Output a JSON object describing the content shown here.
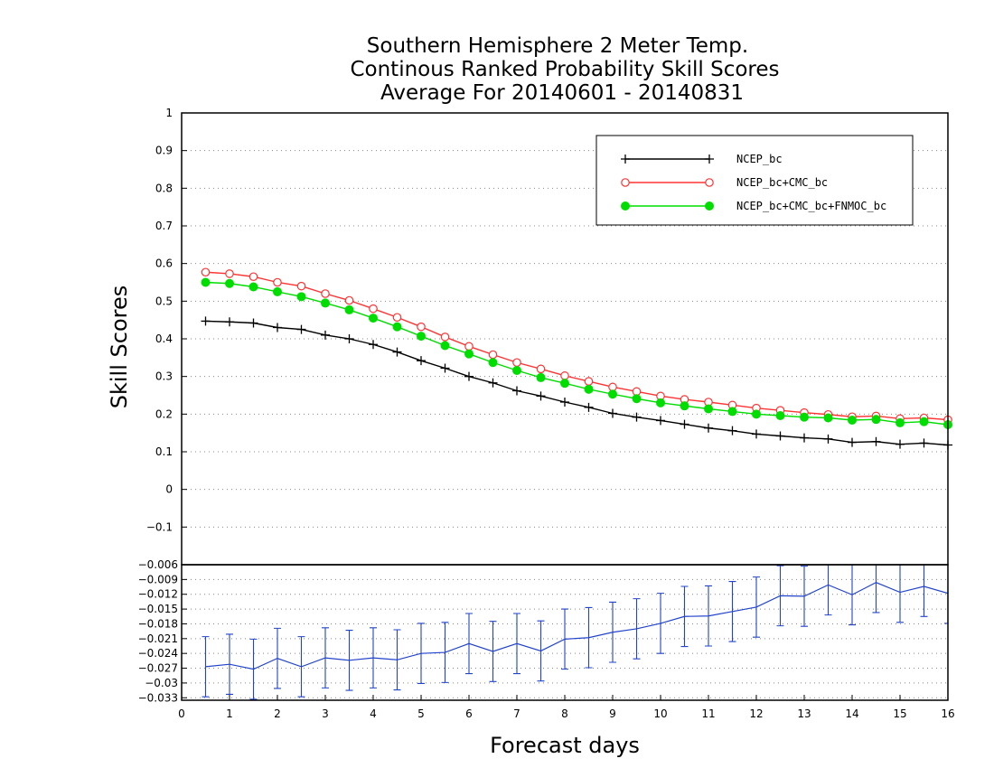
{
  "chart_data": [
    {
      "type": "line",
      "title": [
        "Southern Hemisphere 2 Meter Temp.",
        "Continous Ranked Probability Skill Scores",
        "Average For 20140601 - 20140831"
      ],
      "xlabel": "Forecast days",
      "ylabel": "Skill Scores",
      "xlim": [
        0,
        16
      ],
      "ylim": [
        -0.2,
        1
      ],
      "x_ticks": [
        "0",
        "1",
        "2",
        "3",
        "4",
        "5",
        "6",
        "7",
        "8",
        "9",
        "10",
        "11",
        "12",
        "13",
        "14",
        "15",
        "16"
      ],
      "y_ticks": [
        "−0.1",
        "0",
        "0.1",
        "0.2",
        "0.3",
        "0.4",
        "0.5",
        "0.6",
        "0.7",
        "0.8",
        "0.9",
        "1"
      ],
      "grid": true,
      "legend_position": "top-right",
      "x": [
        0.5,
        1,
        1.5,
        2,
        2.5,
        3,
        3.5,
        4,
        4.5,
        5,
        5.5,
        6,
        6.5,
        7,
        7.5,
        8,
        8.5,
        9,
        9.5,
        10,
        10.5,
        11,
        11.5,
        12,
        12.5,
        13,
        13.5,
        14,
        14.5,
        15,
        15.5,
        16
      ],
      "series": [
        {
          "name": "NCEP_bc",
          "color": "#000000",
          "marker": "plus",
          "values": [
            0.447,
            0.445,
            0.442,
            0.43,
            0.425,
            0.41,
            0.4,
            0.385,
            0.365,
            0.342,
            0.322,
            0.3,
            0.283,
            0.262,
            0.248,
            0.232,
            0.218,
            0.202,
            0.192,
            0.183,
            0.173,
            0.163,
            0.156,
            0.147,
            0.142,
            0.137,
            0.134,
            0.125,
            0.127,
            0.12,
            0.123,
            0.118
          ]
        },
        {
          "name": "NCEP_bc+CMC_bc",
          "color": "#ff3333",
          "marker": "open-circle",
          "values": [
            0.577,
            0.573,
            0.565,
            0.55,
            0.54,
            0.52,
            0.502,
            0.48,
            0.457,
            0.432,
            0.405,
            0.38,
            0.358,
            0.337,
            0.32,
            0.302,
            0.287,
            0.272,
            0.26,
            0.248,
            0.239,
            0.232,
            0.224,
            0.216,
            0.21,
            0.204,
            0.199,
            0.193,
            0.195,
            0.188,
            0.19,
            0.185
          ]
        },
        {
          "name": "NCEP_bc+CMC_bc+FNMOC_bc",
          "color": "#00dd00",
          "marker": "filled-circle",
          "values": [
            0.55,
            0.547,
            0.538,
            0.525,
            0.512,
            0.495,
            0.477,
            0.455,
            0.432,
            0.407,
            0.382,
            0.36,
            0.337,
            0.316,
            0.297,
            0.282,
            0.266,
            0.253,
            0.241,
            0.23,
            0.222,
            0.214,
            0.207,
            0.2,
            0.196,
            0.192,
            0.19,
            0.184,
            0.186,
            0.177,
            0.18,
            0.172
          ]
        }
      ]
    },
    {
      "type": "line",
      "xlim": [
        0,
        16
      ],
      "ylim": [
        -0.0335,
        -0.006
      ],
      "y_ticks": [
        "−0.033",
        "−0.03",
        "−0.027",
        "−0.024",
        "−0.021",
        "−0.018",
        "−0.015",
        "−0.012",
        "−0.009",
        "−0.006"
      ],
      "grid": true,
      "x": [
        0.5,
        1,
        1.5,
        2,
        2.5,
        3,
        3.5,
        4,
        4.5,
        5,
        5.5,
        6,
        6.5,
        7,
        7.5,
        8,
        8.5,
        9,
        9.5,
        10,
        10.5,
        11,
        11.5,
        12,
        12.5,
        13,
        13.5,
        14,
        14.5,
        15,
        15.5,
        16
      ],
      "series": [
        {
          "color": "#2244cc",
          "marker": "errorbar",
          "values": [
            -0.0267,
            -0.0262,
            -0.0272,
            -0.025,
            -0.0267,
            -0.0249,
            -0.0254,
            -0.0249,
            -0.0253,
            -0.024,
            -0.0238,
            -0.022,
            -0.0236,
            -0.022,
            -0.0235,
            -0.0211,
            -0.0208,
            -0.0197,
            -0.019,
            -0.0179,
            -0.0165,
            -0.0164,
            -0.0155,
            -0.0146,
            -0.0123,
            -0.0124,
            -0.0101,
            -0.0121,
            -0.0096,
            -0.0116,
            -0.0104,
            -0.0118
          ],
          "lower": [
            -0.0328,
            -0.0323,
            -0.0333,
            -0.0311,
            -0.0328,
            -0.031,
            -0.0315,
            -0.031,
            -0.0314,
            -0.0301,
            -0.0299,
            -0.0281,
            -0.0297,
            -0.0281,
            -0.0296,
            -0.0272,
            -0.0269,
            -0.0258,
            -0.0251,
            -0.024,
            -0.0226,
            -0.0225,
            -0.0216,
            -0.0207,
            -0.0184,
            -0.0185,
            -0.0162,
            -0.0182,
            -0.0157,
            -0.0177,
            -0.0165,
            -0.0179
          ],
          "upper": [
            -0.0206,
            -0.0201,
            -0.0211,
            -0.0189,
            -0.0206,
            -0.0188,
            -0.0193,
            -0.0188,
            -0.0192,
            -0.0179,
            -0.0177,
            -0.0159,
            -0.0175,
            -0.0159,
            -0.0174,
            -0.015,
            -0.0147,
            -0.0136,
            -0.0129,
            -0.0118,
            -0.0104,
            -0.0103,
            -0.0094,
            -0.0085,
            -0.0062,
            -0.0063,
            -0.004,
            -0.006,
            -0.0035,
            -0.0055,
            -0.0043,
            -0.0057
          ]
        }
      ]
    }
  ]
}
